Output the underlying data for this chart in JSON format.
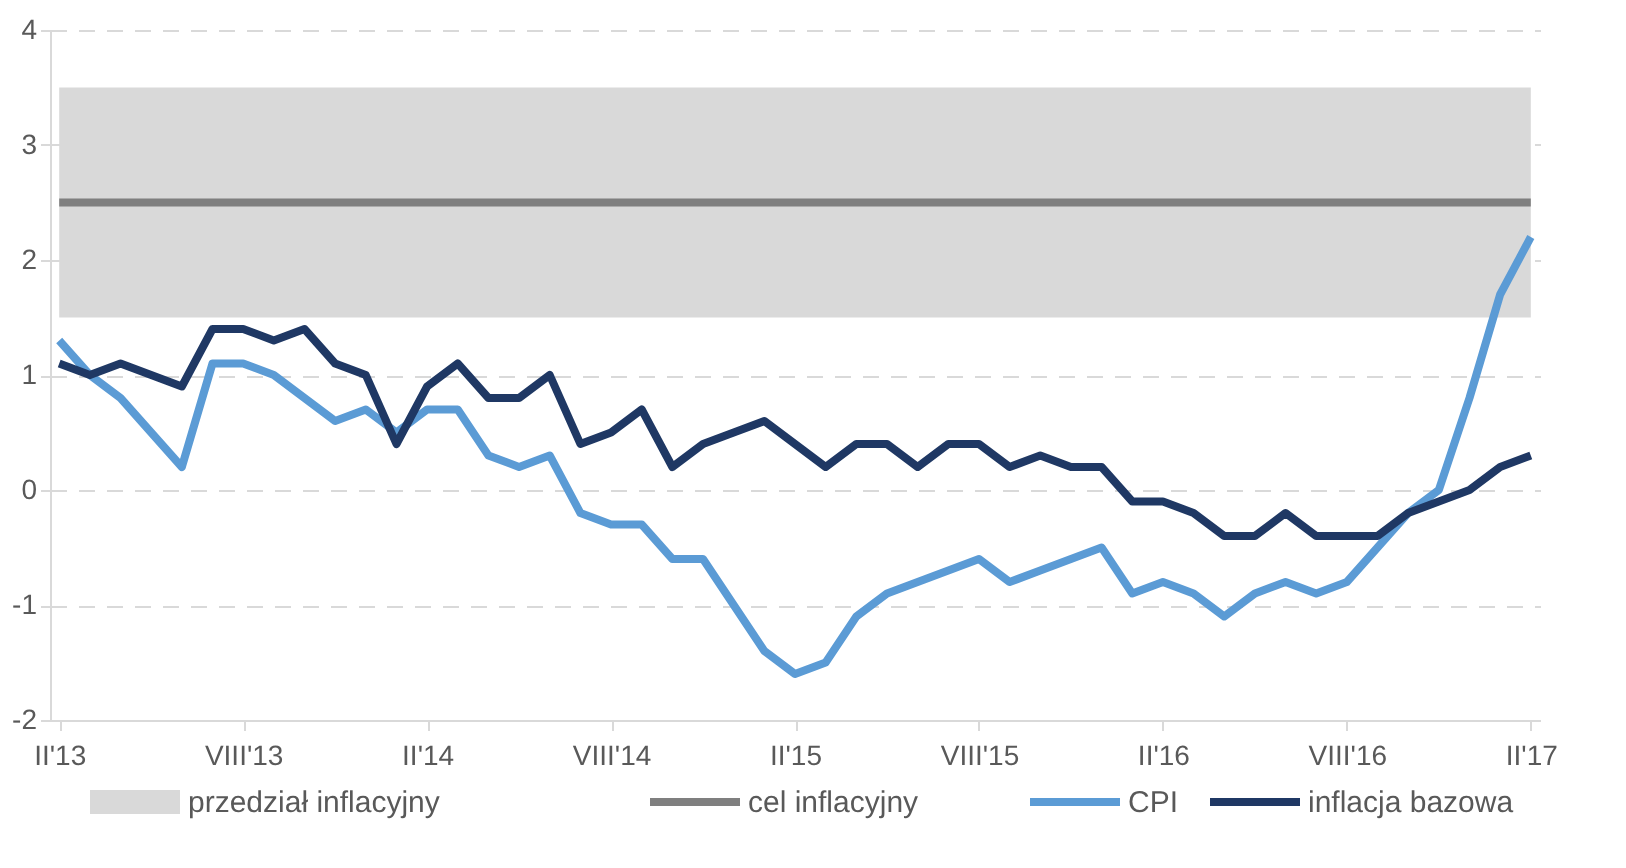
{
  "chart_data": {
    "type": "line",
    "categories": [
      "II'13",
      null,
      null,
      null,
      null,
      null,
      "VIII'13",
      null,
      null,
      null,
      null,
      null,
      "II'14",
      null,
      null,
      null,
      null,
      null,
      "VIII'14",
      null,
      null,
      null,
      null,
      null,
      "II'15",
      null,
      null,
      null,
      null,
      null,
      "VIII'15",
      null,
      null,
      null,
      null,
      null,
      "II'16",
      null,
      null,
      null,
      null,
      null,
      "VIII'16",
      null,
      null,
      null,
      null,
      null,
      "II'17"
    ],
    "series": [
      {
        "name": "CPI",
        "color": "#5b9bd5",
        "values": [
          1.3,
          1.0,
          0.8,
          0.5,
          0.2,
          1.1,
          1.1,
          1.0,
          0.8,
          0.6,
          0.7,
          0.5,
          0.7,
          0.7,
          0.3,
          0.2,
          0.3,
          -0.2,
          -0.3,
          -0.3,
          -0.6,
          -0.6,
          -1.0,
          -1.4,
          -1.6,
          -1.5,
          -1.1,
          -0.9,
          -0.8,
          -0.7,
          -0.6,
          -0.8,
          -0.7,
          -0.6,
          -0.5,
          -0.9,
          -0.8,
          -0.9,
          -1.1,
          -0.9,
          -0.8,
          -0.9,
          -0.8,
          -0.5,
          -0.2,
          0.0,
          0.8,
          1.7,
          2.2
        ]
      },
      {
        "name": "inflacja bazowa",
        "color": "#1f3864",
        "values": [
          1.1,
          1.0,
          1.1,
          1.0,
          0.9,
          1.4,
          1.4,
          1.3,
          1.4,
          1.1,
          1.0,
          0.4,
          0.9,
          1.1,
          0.8,
          0.8,
          1.0,
          0.4,
          0.5,
          0.7,
          0.2,
          0.4,
          0.5,
          0.6,
          0.4,
          0.2,
          0.4,
          0.4,
          0.2,
          0.4,
          0.4,
          0.2,
          0.3,
          0.2,
          0.2,
          -0.1,
          -0.1,
          -0.2,
          -0.4,
          -0.4,
          -0.2,
          -0.4,
          -0.4,
          -0.4,
          -0.2,
          -0.1,
          0.0,
          0.2,
          0.3
        ]
      }
    ],
    "bands": [
      {
        "axis": "y",
        "from": 1.5,
        "to": 3.5,
        "label": "przedział inflacyjny",
        "color": "#d9d9d9"
      }
    ],
    "ref_lines": [
      {
        "axis": "y",
        "value": 2.5,
        "label": "cel inflacyjny",
        "color": "#7f7f7f"
      }
    ],
    "ylim": [
      -2,
      4
    ],
    "yticks": [
      -2,
      -1,
      0,
      1,
      2,
      3,
      4
    ],
    "grid": "y",
    "legend": "bottom",
    "line_style": "solid",
    "marker": "none"
  }
}
